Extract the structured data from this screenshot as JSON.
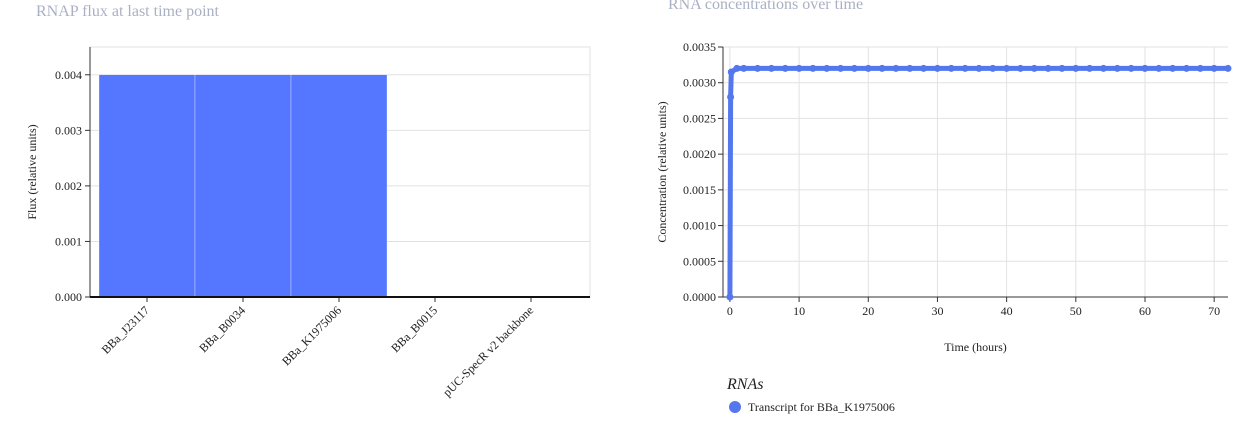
{
  "chart_data": [
    {
      "type": "bar",
      "title": "RNAP flux at last time point",
      "y_label": "Flux (relative units)",
      "categories": [
        "BBa_J23117",
        "BBa_B0034",
        "BBa_K1975006",
        "BBa_B0015",
        "pUC-SpecR v2 backbone"
      ],
      "values": [
        0.004,
        0.004,
        0.004,
        0,
        0
      ],
      "color": "#5577ff",
      "ylim": [
        0,
        0.0045
      ],
      "yticks": [
        {
          "value": 0,
          "label": "0.000"
        },
        {
          "value": 0.001,
          "label": "0.001"
        },
        {
          "value": 0.002,
          "label": "0.002"
        },
        {
          "value": 0.003,
          "label": "0.003"
        },
        {
          "value": 0.004,
          "label": "0.004"
        }
      ],
      "grid": true
    },
    {
      "type": "line",
      "title": "RNA concentrations over time",
      "x_label": "Time (hours)",
      "y_label": "Concentration (relative units)",
      "legend_title": "RNAs",
      "x": [
        0,
        0.1,
        0.2,
        1,
        2,
        4,
        6,
        8,
        10,
        12,
        14,
        16,
        18,
        20,
        22,
        24,
        26,
        28,
        30,
        32,
        34,
        36,
        38,
        40,
        42,
        44,
        46,
        48,
        50,
        52,
        54,
        56,
        58,
        60,
        62,
        64,
        66,
        68,
        70,
        72
      ],
      "series": [
        {
          "name": "Transcript for BBa_K1975006",
          "color": "#5577ee",
          "values": [
            0,
            0.0028,
            0.00315,
            0.0032,
            0.0032,
            0.0032,
            0.0032,
            0.0032,
            0.0032,
            0.0032,
            0.0032,
            0.0032,
            0.0032,
            0.0032,
            0.0032,
            0.0032,
            0.0032,
            0.0032,
            0.0032,
            0.0032,
            0.0032,
            0.0032,
            0.0032,
            0.0032,
            0.0032,
            0.0032,
            0.0032,
            0.0032,
            0.0032,
            0.0032,
            0.0032,
            0.0032,
            0.0032,
            0.0032,
            0.0032,
            0.0032,
            0.0032,
            0.0032,
            0.0032,
            0.0032
          ]
        }
      ],
      "xlim": [
        -1,
        72
      ],
      "xticks": [
        0,
        10,
        20,
        30,
        40,
        50,
        60,
        70
      ],
      "ylim": [
        0,
        0.0035
      ],
      "yticks": [
        {
          "value": 0,
          "label": "0.0000"
        },
        {
          "value": 0.0005,
          "label": "0.0005"
        },
        {
          "value": 0.001,
          "label": "0.0010"
        },
        {
          "value": 0.0015,
          "label": "0.0015"
        },
        {
          "value": 0.002,
          "label": "0.0020"
        },
        {
          "value": 0.0025,
          "label": "0.0025"
        },
        {
          "value": 0.003,
          "label": "0.0030"
        },
        {
          "value": 0.0035,
          "label": "0.0035"
        }
      ],
      "grid": true
    }
  ]
}
